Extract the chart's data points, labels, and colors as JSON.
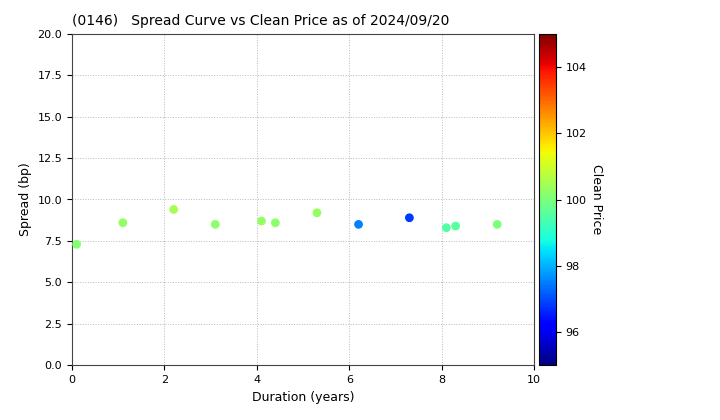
{
  "title": "(0146)   Spread Curve vs Clean Price as of 2024/09/20",
  "xlabel": "Duration (years)",
  "ylabel": "Spread (bp)",
  "colorbar_label": "Clean Price",
  "xlim": [
    0,
    10
  ],
  "ylim": [
    0.0,
    20.0
  ],
  "yticks": [
    0.0,
    2.5,
    5.0,
    7.5,
    10.0,
    12.5,
    15.0,
    17.5,
    20.0
  ],
  "xticks": [
    0,
    2,
    4,
    6,
    8,
    10
  ],
  "colorbar_min": 95.0,
  "colorbar_max": 105.0,
  "colorbar_ticks": [
    96,
    98,
    100,
    102,
    104
  ],
  "points": [
    {
      "duration": 0.1,
      "spread": 7.3,
      "price": 100.1
    },
    {
      "duration": 1.1,
      "spread": 8.6,
      "price": 100.3
    },
    {
      "duration": 2.2,
      "spread": 9.4,
      "price": 100.5
    },
    {
      "duration": 3.1,
      "spread": 8.5,
      "price": 100.2
    },
    {
      "duration": 4.1,
      "spread": 8.7,
      "price": 100.3
    },
    {
      "duration": 4.4,
      "spread": 8.6,
      "price": 100.2
    },
    {
      "duration": 5.3,
      "spread": 9.2,
      "price": 100.3
    },
    {
      "duration": 6.2,
      "spread": 8.5,
      "price": 97.5
    },
    {
      "duration": 7.3,
      "spread": 8.9,
      "price": 96.8
    },
    {
      "duration": 8.1,
      "spread": 8.3,
      "price": 99.5
    },
    {
      "duration": 8.3,
      "spread": 8.4,
      "price": 99.6
    },
    {
      "duration": 9.2,
      "spread": 8.5,
      "price": 100.0
    }
  ],
  "background_color": "#ffffff",
  "grid_color": "#b0b0b0",
  "marker_size": 28,
  "title_fontsize": 10,
  "axis_fontsize": 9,
  "tick_fontsize": 8
}
